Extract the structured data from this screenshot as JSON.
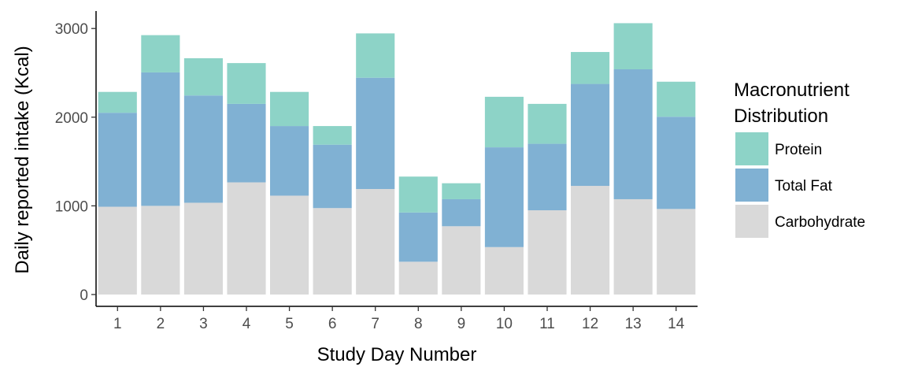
{
  "chart_data": {
    "type": "bar",
    "stacked": true,
    "title": "",
    "xlabel": "Study Day Number",
    "ylabel": "Daily reported intake (Kcal)",
    "categories": [
      "1",
      "2",
      "3",
      "4",
      "5",
      "6",
      "7",
      "8",
      "9",
      "10",
      "11",
      "12",
      "13",
      "14"
    ],
    "ylim": [
      0,
      3200
    ],
    "yticks": [
      0,
      1000,
      2000,
      3000
    ],
    "grid": false,
    "legend": {
      "title": "Macronutrient Distribution",
      "title_lines": [
        "Macronutrient",
        "Distribution"
      ],
      "position": "right",
      "order": [
        "Protein",
        "Total Fat",
        "Carbohydrate"
      ]
    },
    "series": [
      {
        "name": "Carbohydrate",
        "color": "#d9d9d9",
        "values": [
          990,
          1000,
          1035,
          1265,
          1115,
          975,
          1190,
          370,
          770,
          535,
          950,
          1225,
          1075,
          965
        ]
      },
      {
        "name": "Total Fat",
        "color": "#80b1d3",
        "values": [
          1060,
          1505,
          1210,
          885,
          785,
          715,
          1255,
          555,
          305,
          1125,
          750,
          1150,
          1465,
          1040
        ]
      },
      {
        "name": "Protein",
        "color": "#8dd3c7",
        "values": [
          235,
          420,
          420,
          460,
          385,
          210,
          500,
          405,
          180,
          570,
          450,
          360,
          520,
          395
        ]
      }
    ]
  }
}
